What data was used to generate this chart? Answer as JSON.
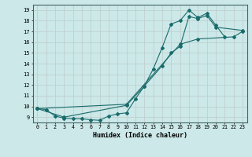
{
  "xlabel": "Humidex (Indice chaleur)",
  "bg_color": "#cce8e8",
  "grid_color": "#c0d0d0",
  "line_color": "#1a6b6b",
  "xlim": [
    -0.5,
    23.5
  ],
  "ylim": [
    8.5,
    19.5
  ],
  "xticks": [
    0,
    1,
    2,
    3,
    4,
    5,
    6,
    7,
    8,
    9,
    10,
    11,
    12,
    13,
    14,
    15,
    16,
    17,
    18,
    19,
    20,
    21,
    22,
    23
  ],
  "yticks": [
    9,
    10,
    11,
    12,
    13,
    14,
    15,
    16,
    17,
    18,
    19
  ],
  "line1_x": [
    0,
    1,
    2,
    3,
    4,
    5,
    6,
    7,
    8,
    9,
    10,
    11,
    12,
    13,
    14,
    15,
    16,
    17,
    18,
    19,
    20,
    21
  ],
  "line1_y": [
    9.8,
    9.7,
    9.1,
    8.9,
    8.85,
    8.85,
    8.75,
    8.7,
    9.1,
    9.3,
    9.4,
    10.7,
    11.9,
    13.5,
    15.5,
    17.7,
    18.0,
    19.0,
    18.3,
    18.7,
    17.6,
    16.5
  ],
  "line2_x": [
    0,
    3,
    10,
    12,
    14,
    15,
    16,
    17,
    18,
    19,
    20,
    23
  ],
  "line2_y": [
    9.8,
    9.0,
    10.1,
    11.9,
    13.8,
    15.0,
    15.6,
    18.4,
    18.2,
    18.5,
    17.4,
    17.1
  ],
  "line3_x": [
    0,
    10,
    16,
    18,
    22,
    23
  ],
  "line3_y": [
    9.8,
    10.2,
    15.8,
    16.3,
    16.5,
    17.0
  ]
}
